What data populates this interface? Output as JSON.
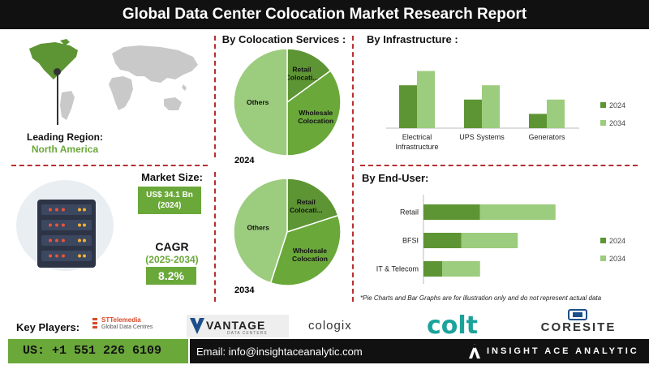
{
  "title": "Global Data Center Colocation Market Research Report",
  "leading_region": {
    "label": "Leading Region:",
    "value": "North America"
  },
  "market_size": {
    "label": "Market Size:",
    "value": "US$ 34.1 Bn",
    "year": "(2024)"
  },
  "cagr": {
    "label": "CAGR",
    "period": "(2025-2034)",
    "value": "8.2%"
  },
  "sections": {
    "colocation": "By Colocation Services :",
    "infrastructure": "By  Infrastructure :",
    "end_user": "By End-User:"
  },
  "note": "*Pie Charts and Bar Graphs are for illustration only and do not represent actual data",
  "key_players": {
    "label": "Key Players:",
    "logos": [
      "STTelemedia",
      "Global Data Centres",
      "VANTAGE",
      "DATA CENTERS",
      "cologix",
      "colt",
      "CORESITE"
    ]
  },
  "footer": {
    "phone": "US: +1 551 226 6109",
    "email": "Email: info@insightaceanalytic.com",
    "brand": "INSIGHT ACE ANALYTIC"
  },
  "colors": {
    "dark_green": "#5e9534",
    "mid_green": "#6aa83a",
    "light_green": "#9ccc7d",
    "dash_red": "#b53030"
  },
  "chart_data": [
    {
      "type": "pie",
      "year": "2024",
      "slices": [
        {
          "label": "Retail Colocati...",
          "value": 15
        },
        {
          "label": "Wholesale Colocation",
          "value": 35
        },
        {
          "label": "Others",
          "value": 50
        }
      ]
    },
    {
      "type": "pie",
      "year": "2034",
      "slices": [
        {
          "label": "Retail Colocati...",
          "value": 20
        },
        {
          "label": "Wholesale Colocation",
          "value": 35
        },
        {
          "label": "Others",
          "value": 45
        }
      ]
    },
    {
      "type": "bar",
      "categories": [
        "Electrical Infrastructure",
        "UPS Systems",
        "Generators"
      ],
      "category_lines": [
        [
          "Electrical",
          "Infrastructure"
        ],
        [
          "UPS Systems"
        ],
        [
          "Generators"
        ]
      ],
      "series": [
        {
          "name": "2024",
          "values": [
            3.0,
            2.0,
            1.0
          ]
        },
        {
          "name": "2034",
          "values": [
            4.0,
            3.0,
            2.0
          ]
        }
      ],
      "ylim": [
        0,
        4.2
      ],
      "legend": "right"
    },
    {
      "type": "bar",
      "orientation": "horizontal",
      "stacked": true,
      "categories": [
        "Retail",
        "BFSI",
        "IT & Telecom"
      ],
      "series": [
        {
          "name": "2024",
          "values": [
            3.0,
            2.0,
            1.0
          ]
        },
        {
          "name": "2034",
          "values": [
            4.0,
            3.0,
            2.0
          ]
        }
      ],
      "xlim": [
        0,
        8
      ],
      "legend": "right"
    }
  ]
}
